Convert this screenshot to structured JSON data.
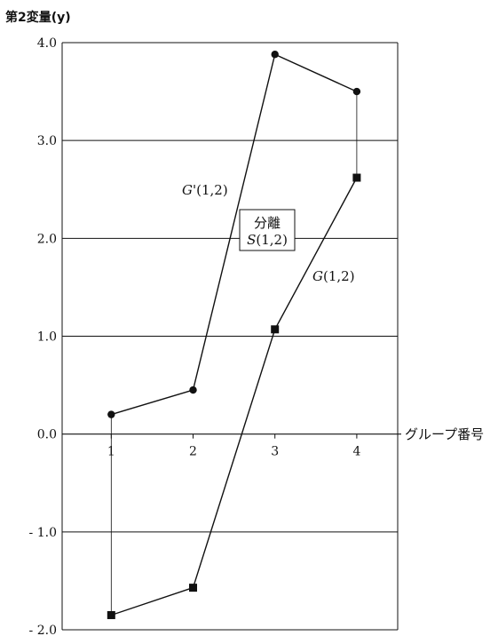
{
  "chart_data": {
    "type": "line",
    "title": "",
    "ylabel": "第2変量(y)",
    "xlabel": "グループ番号",
    "xlim": [
      0.4,
      4.5
    ],
    "ylim": [
      -2.0,
      4.0
    ],
    "x_ticks": [
      1,
      2,
      3,
      4
    ],
    "x_tick_labels": [
      "1",
      "2",
      "3",
      "4"
    ],
    "y_ticks": [
      4.0,
      3.0,
      2.0,
      1.0,
      0.0,
      -1.0,
      -2.0
    ],
    "y_tick_labels": [
      "4.0",
      "3.0",
      "2.0",
      "1.0",
      "0.0",
      "- 1.0",
      "- 2.0"
    ],
    "grid": "horizontal",
    "series": [
      {
        "name": "G'(1,2)",
        "name_italic": "G",
        "name_rest": "'(1,2)",
        "marker": "circle",
        "x": [
          1,
          2,
          3,
          4
        ],
        "y": [
          0.2,
          0.45,
          3.88,
          3.5
        ]
      },
      {
        "name": "G(1,2)",
        "name_italic": "G",
        "name_rest": "(1,2)",
        "marker": "square",
        "x": [
          1,
          2,
          3,
          4
        ],
        "y": [
          -1.85,
          -1.57,
          1.07,
          2.62
        ]
      }
    ],
    "annotation": {
      "line1": "分離",
      "line2_italic": "S",
      "line2_rest": "(1,2)"
    }
  }
}
